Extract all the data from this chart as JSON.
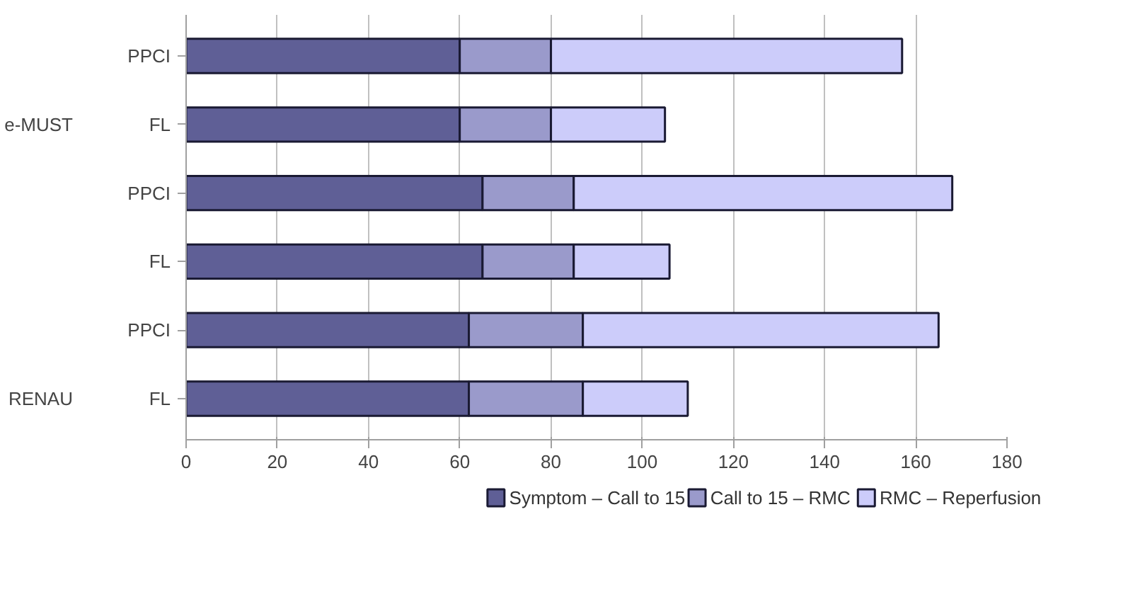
{
  "chart_data": {
    "type": "bar",
    "orientation": "horizontal",
    "stacked": true,
    "categories": [
      "PPCI",
      "FL",
      "PPCI",
      "FL",
      "PPCI",
      "FL"
    ],
    "series": [
      {
        "name": "Symptom – Call to 15",
        "color": "#5f5f96",
        "values": [
          60,
          60,
          65,
          65,
          62,
          62
        ]
      },
      {
        "name": "Call to 15 – RMC",
        "color": "#9a9acb",
        "values": [
          20,
          20,
          20,
          20,
          25,
          25
        ]
      },
      {
        "name": "RMC – Reperfusion",
        "color": "#ccccfa",
        "values": [
          77,
          25,
          83,
          21,
          78,
          23
        ]
      }
    ],
    "xlim": [
      0,
      180
    ],
    "xticks": [
      0,
      20,
      40,
      60,
      80,
      100,
      120,
      140,
      160,
      180
    ],
    "grid": "x",
    "legend": "bottom",
    "annotations": [
      "e-MUST",
      "RENAU"
    ]
  }
}
